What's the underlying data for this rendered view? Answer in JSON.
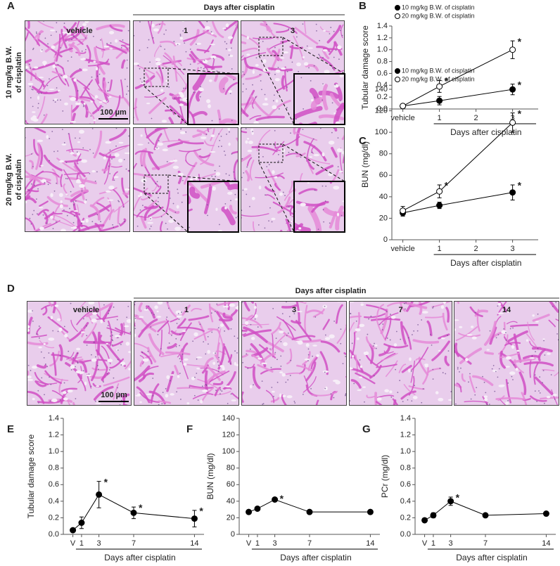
{
  "panel_labels": [
    "A",
    "B",
    "C",
    "D",
    "E",
    "F",
    "G"
  ],
  "histology_a": {
    "header": "Days after cisplatin",
    "columns": [
      "vehicle",
      "1",
      "3"
    ],
    "rows": [
      [
        "10 mg/kg B.W.",
        "of cisplatin"
      ],
      [
        "20 mg/kg B.W.",
        "of cisplatin"
      ]
    ],
    "scale_bar": "100 µm"
  },
  "histology_d": {
    "header": "Days after cisplatin",
    "columns": [
      "vehicle",
      "1",
      "3",
      "7",
      "14"
    ],
    "scale_bar": "100 µm"
  },
  "chart_data": [
    {
      "type": "line",
      "ylabel": "Tubular damage score",
      "xlabel": "Days after cisplatin",
      "x": [
        0,
        1,
        3
      ],
      "xlim": [
        -0.3,
        3.7
      ],
      "xticks": [
        {
          "value": 0,
          "label": "vehicle"
        },
        1,
        2,
        3
      ],
      "ylim": [
        0,
        1.4
      ],
      "yticks": [
        {
          "value": 0,
          "label": "0.0"
        },
        0.2,
        0.4,
        0.6,
        0.8,
        {
          "value": 1,
          "label": "1.0"
        },
        1.2,
        1.4
      ],
      "legend": "upper left",
      "series": [
        {
          "name": "10 mg/kg B.W. of cisplatin",
          "color": "#000000",
          "fill": "#000000",
          "values": [
            0.05,
            0.14,
            0.33
          ],
          "errors": [
            0.02,
            0.07,
            0.09
          ],
          "asterisks": [
            null,
            null,
            "*"
          ]
        },
        {
          "name": "20 mg/kg B.W. of cisplatin",
          "color": "#000000",
          "fill": "#ffffff",
          "values": [
            0.05,
            0.38,
            1.0
          ],
          "errors": [
            0.02,
            0.1,
            0.15
          ],
          "asterisks": [
            null,
            "*",
            "*"
          ]
        }
      ]
    },
    {
      "type": "line",
      "ylabel": "BUN (mg/dl)",
      "xlabel": "Days after cisplatin",
      "x": [
        0,
        1,
        3
      ],
      "xlim": [
        -0.3,
        3.7
      ],
      "xticks": [
        {
          "value": 0,
          "label": "vehicle"
        },
        1,
        2,
        3
      ],
      "ylim": [
        0,
        140
      ],
      "yticks": [
        0,
        20,
        40,
        60,
        80,
        100,
        120,
        140
      ],
      "legend": "upper left",
      "series": [
        {
          "name": "10 mg/kg B.W. of cisplatin",
          "color": "#000000",
          "fill": "#000000",
          "values": [
            25,
            32,
            44
          ],
          "errors": [
            3,
            3,
            7
          ],
          "asterisks": [
            null,
            null,
            "*"
          ]
        },
        {
          "name": "20 mg/kg B.W. of cisplatin",
          "color": "#000000",
          "fill": "#ffffff",
          "values": [
            27,
            45,
            109
          ],
          "errors": [
            4,
            6,
            9
          ],
          "asterisks": [
            null,
            "*",
            "*"
          ]
        }
      ]
    },
    {
      "type": "line",
      "ylabel": "Tubular  damage score",
      "xlabel": "Days after cisplatin",
      "x": [
        0,
        1,
        3,
        7,
        14
      ],
      "xlim": [
        -1.1,
        15.1
      ],
      "xticks": [
        {
          "value": 0,
          "label": "V"
        },
        1,
        3,
        7,
        14
      ],
      "ylim": [
        0,
        1.4
      ],
      "yticks": [
        {
          "value": 0,
          "label": "0.0"
        },
        0.2,
        0.4,
        0.6,
        0.8,
        {
          "value": 1,
          "label": "1.0"
        },
        1.2,
        1.4
      ],
      "series": [
        {
          "color": "#000000",
          "fill": "#000000",
          "values": [
            0.05,
            0.14,
            0.48,
            0.26,
            0.19
          ],
          "errors": [
            0.02,
            0.07,
            0.16,
            0.07,
            0.1
          ],
          "asterisks": [
            null,
            null,
            "*",
            "*",
            "*"
          ]
        }
      ]
    },
    {
      "type": "line",
      "ylabel": "BUN (mg/dl)",
      "xlabel": "Days after cisplatin",
      "x": [
        0,
        1,
        3,
        7,
        14
      ],
      "xlim": [
        -1.1,
        15.1
      ],
      "xticks": [
        {
          "value": 0,
          "label": "V"
        },
        1,
        3,
        7,
        14
      ],
      "ylim": [
        0,
        140
      ],
      "yticks": [
        0,
        20,
        40,
        60,
        80,
        100,
        120,
        140
      ],
      "series": [
        {
          "color": "#000000",
          "fill": "#000000",
          "values": [
            27,
            31,
            42,
            27,
            27
          ],
          "errors": [
            2,
            2,
            2,
            1,
            1
          ],
          "asterisks": [
            null,
            null,
            "*",
            null,
            null
          ]
        }
      ]
    },
    {
      "type": "line",
      "ylabel": "PCr (mg/dl)",
      "xlabel": "Days after cisplatin",
      "x": [
        0,
        1,
        3,
        7,
        14
      ],
      "xlim": [
        -1.1,
        15.1
      ],
      "xticks": [
        {
          "value": 0,
          "label": "V"
        },
        1,
        3,
        7,
        14
      ],
      "ylim": [
        0,
        1.4
      ],
      "yticks": [
        {
          "value": 0,
          "label": "0.0"
        },
        0.2,
        0.4,
        0.6,
        0.8,
        {
          "value": 1,
          "label": "1.0"
        },
        1.2,
        1.4
      ],
      "series": [
        {
          "color": "#000000",
          "fill": "#000000",
          "values": [
            0.17,
            0.23,
            0.4,
            0.23,
            0.25
          ],
          "errors": [
            0.02,
            0.03,
            0.05,
            0.02,
            0.02
          ],
          "asterisks": [
            null,
            null,
            "*",
            null,
            null
          ]
        }
      ]
    }
  ]
}
